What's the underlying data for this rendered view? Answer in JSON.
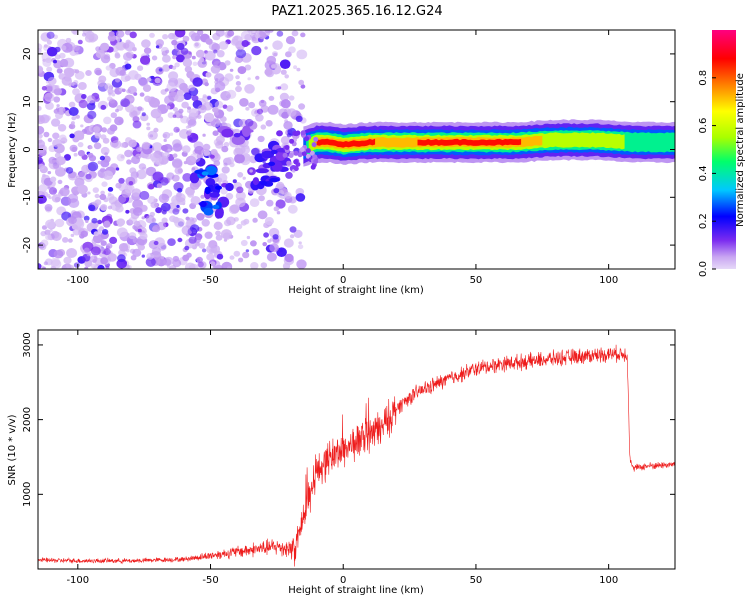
{
  "colors": {
    "snr_line": "#ee1c1c",
    "axes": "#000000",
    "colorbar": [
      "#e6d8f8",
      "#c9a6f2",
      "#7b2cf0",
      "#0000ff",
      "#00c8ff",
      "#00ff6a",
      "#a8ff00",
      "#ffff00",
      "#ff8000",
      "#ff0000",
      "#ff0080"
    ]
  },
  "chart_data": [
    {
      "type": "heatmap",
      "title": "PAZ1.2025.365.16.12.G24",
      "xlabel": "Height of straight line (km)",
      "ylabel": "Frequency (Hz)",
      "xlim": [
        -115,
        125
      ],
      "ylim": [
        -25,
        25
      ],
      "xticks": [
        -100,
        -50,
        0,
        50,
        100
      ],
      "xtick_labels": [
        "-100",
        "-50",
        "0",
        "50",
        "100"
      ],
      "yticks": [
        -20,
        -10,
        0,
        10,
        20
      ],
      "ytick_labels": [
        "-20",
        "-10",
        "0",
        "10",
        "20"
      ],
      "colorbar": {
        "label": "Normalized spectral amplitude",
        "range": [
          0,
          1
        ],
        "ticks": [
          0.0,
          0.2,
          0.4,
          0.6,
          0.8
        ],
        "tick_labels": [
          "0.0",
          "0.2",
          "0.4",
          "0.6",
          "0.8"
        ]
      },
      "ridge": {
        "description_values": "dominant frequency vs height",
        "x": [
          -15,
          -10,
          -5,
          0,
          10,
          20,
          30,
          50,
          65,
          80,
          95,
          110,
          125
        ],
        "freq_hz": [
          0.5,
          1.5,
          1.5,
          1.0,
          1.5,
          1.5,
          1.5,
          1.5,
          1.5,
          2.0,
          2.0,
          1.5,
          1.5
        ],
        "amplitude": [
          0.35,
          0.9,
          0.9,
          0.85,
          0.9,
          0.7,
          0.9,
          0.95,
          0.9,
          0.6,
          0.7,
          0.5,
          0.5
        ]
      },
      "scatter_region": {
        "x_range": [
          -115,
          -15
        ],
        "freq_range": [
          -25,
          25
        ],
        "amplitude": "low (0.0-0.25)"
      },
      "cluster_blobs": [
        {
          "x": -52,
          "freq": -5,
          "amp": 0.3
        },
        {
          "x": -48,
          "freq": -12,
          "amp": 0.28
        },
        {
          "x": -47,
          "freq": -8,
          "amp": 0.22
        },
        {
          "x": -40,
          "freq": 3,
          "amp": 0.15
        },
        {
          "x": -30,
          "freq": -7,
          "amp": 0.2
        },
        {
          "x": -27,
          "freq": -3,
          "amp": 0.2
        },
        {
          "x": -26,
          "freq": -0.5,
          "amp": 0.18
        }
      ]
    },
    {
      "type": "line",
      "xlabel": "Height of straight line (km)",
      "ylabel": "SNR (10 * v/v)",
      "xlim": [
        -115,
        125
      ],
      "ylim": [
        0,
        3200
      ],
      "xticks": [
        -100,
        -50,
        0,
        50,
        100
      ],
      "xtick_labels": [
        "-100",
        "-50",
        "0",
        "50",
        "100"
      ],
      "yticks": [
        1000,
        2000,
        3000
      ],
      "ytick_labels": [
        "1000",
        "2000",
        "3000"
      ],
      "series": [
        {
          "name": "SNR",
          "x": [
            -115,
            -100,
            -80,
            -60,
            -50,
            -40,
            -30,
            -25,
            -20,
            -18,
            -15,
            -12,
            -10,
            -5,
            0,
            5,
            10,
            15,
            20,
            25,
            30,
            40,
            50,
            60,
            70,
            80,
            90,
            100,
            107,
            108,
            109,
            115,
            125
          ],
          "y": [
            120,
            110,
            110,
            130,
            180,
            230,
            280,
            300,
            270,
            300,
            700,
            1100,
            1300,
            1500,
            1600,
            1700,
            1800,
            1900,
            2150,
            2300,
            2400,
            2550,
            2680,
            2750,
            2780,
            2820,
            2850,
            2880,
            2880,
            1500,
            1350,
            1380,
            1400
          ]
        }
      ]
    }
  ]
}
